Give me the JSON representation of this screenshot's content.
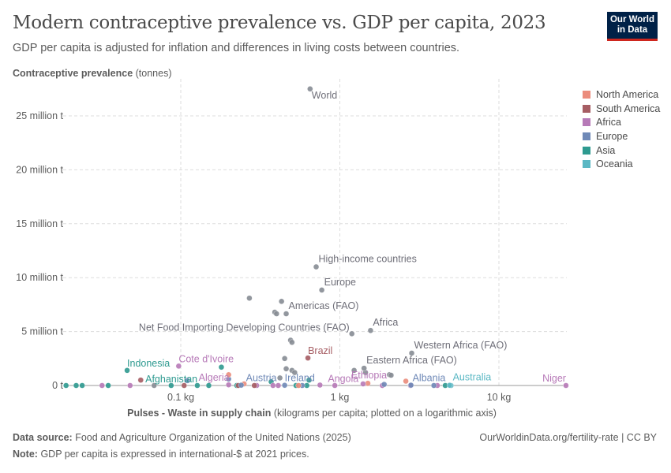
{
  "header": {
    "title": "Modern contraceptive prevalence vs. GDP per capita, 2023",
    "subtitle": "GDP per capita is adjusted for inflation and differences in living costs between countries.",
    "logo": "Our World in Data"
  },
  "footer": {
    "source_label": "Data source:",
    "source": "Food and Agriculture Organization of the United Nations (2025)",
    "note_label": "Note:",
    "note": "GDP per capita is expressed in international-$ at 2021 prices.",
    "url": "OurWorldinData.org/fertility-rate | CC BY"
  },
  "chart_data": {
    "type": "scatter",
    "title": "Modern contraceptive prevalence vs. GDP per capita, 2023",
    "ylabel_bold": "Contraceptive prevalence",
    "ylabel_unit": "(tonnes)",
    "xlabel_bold": "Pulses - Waste in supply chain",
    "xlabel_rest": "(kilograms per capita; plotted on a logarithmic axis)",
    "xscale": "log",
    "xlim": [
      0.017,
      30
    ],
    "ylim": [
      0,
      28000000
    ],
    "xticks": [
      {
        "v": 0.1,
        "label": "0.1 kg"
      },
      {
        "v": 1,
        "label": "1 kg"
      },
      {
        "v": 10,
        "label": "10 kg"
      }
    ],
    "yticks": [
      {
        "v": 0,
        "label": "0 t"
      },
      {
        "v": 5000000,
        "label": "5 million t"
      },
      {
        "v": 10000000,
        "label": "10 million t"
      },
      {
        "v": 15000000,
        "label": "15 million t"
      },
      {
        "v": 20000000,
        "label": "20 million t"
      },
      {
        "v": 25000000,
        "label": "25 million t"
      }
    ],
    "grid": true,
    "legend_placement": "right",
    "legend": [
      {
        "name": "North America",
        "color": "#eb8c7c"
      },
      {
        "name": "South America",
        "color": "#a65d63"
      },
      {
        "name": "Africa",
        "color": "#b77ab8"
      },
      {
        "name": "Europe",
        "color": "#6f89b7"
      },
      {
        "name": "Asia",
        "color": "#2e9a90"
      },
      {
        "name": "Oceania",
        "color": "#5bb8c4"
      }
    ],
    "aggregate_color": "#878c94",
    "labeled_points": [
      {
        "name": "World",
        "x": 0.65,
        "y": 27500000,
        "region": "agg"
      },
      {
        "name": "High-income countries",
        "x": 0.71,
        "y": 11000000,
        "region": "agg"
      },
      {
        "name": "Europe",
        "x": 0.77,
        "y": 8850000,
        "region": "agg"
      },
      {
        "name": "Americas (FAO)",
        "x": 0.46,
        "y": 6650000,
        "region": "agg"
      },
      {
        "name": "Net Food Importing Developing Countries (FAO)",
        "x": 1.19,
        "y": 4800000,
        "region": "agg"
      },
      {
        "name": "Africa",
        "x": 1.56,
        "y": 5100000,
        "region": "agg"
      },
      {
        "name": "Western Africa (FAO)",
        "x": 2.83,
        "y": 3000000,
        "region": "agg"
      },
      {
        "name": "Eastern Africa (FAO)",
        "x": 1.42,
        "y": 1600000,
        "region": "agg"
      },
      {
        "name": "Brazil",
        "x": 0.63,
        "y": 2550000,
        "region": "South America"
      },
      {
        "name": "Indonesia",
        "x": 0.046,
        "y": 1400000,
        "region": "Asia"
      },
      {
        "name": "Cote d'Ivoire",
        "x": 0.097,
        "y": 1800000,
        "region": "Africa"
      },
      {
        "name": "Afghanistan",
        "x": 0.024,
        "y": 0,
        "region": "Asia"
      },
      {
        "name": "Algeria",
        "x": 0.2,
        "y": 60000,
        "region": "Africa"
      },
      {
        "name": "Austria",
        "x": 0.24,
        "y": 30000,
        "region": "Europe"
      },
      {
        "name": "Ireland",
        "x": 0.45,
        "y": 20000,
        "region": "Europe"
      },
      {
        "name": "Angola",
        "x": 0.75,
        "y": 40000,
        "region": "Africa"
      },
      {
        "name": "Ethiopia",
        "x": 1.4,
        "y": 150000,
        "region": "Africa"
      },
      {
        "name": "Albania",
        "x": 2.8,
        "y": 30000,
        "region": "Europe"
      },
      {
        "name": "Australia",
        "x": 4.9,
        "y": 20000,
        "region": "Oceania"
      },
      {
        "name": "Niger",
        "x": 26.4,
        "y": 0,
        "region": "Africa"
      }
    ],
    "points": [
      {
        "x": 0.27,
        "y": 8100000,
        "region": "agg"
      },
      {
        "x": 0.43,
        "y": 7800000,
        "region": "agg"
      },
      {
        "x": 0.39,
        "y": 6800000,
        "region": "agg"
      },
      {
        "x": 0.4,
        "y": 6650000,
        "region": "agg"
      },
      {
        "x": 0.49,
        "y": 4200000,
        "region": "agg"
      },
      {
        "x": 0.5,
        "y": 4000000,
        "region": "agg"
      },
      {
        "x": 0.45,
        "y": 2500000,
        "region": "agg"
      },
      {
        "x": 0.46,
        "y": 1550000,
        "region": "agg"
      },
      {
        "x": 0.5,
        "y": 1400000,
        "region": "agg"
      },
      {
        "x": 1.23,
        "y": 1400000,
        "region": "agg"
      },
      {
        "x": 1.45,
        "y": 1200000,
        "region": "agg"
      },
      {
        "x": 2.05,
        "y": 1000000,
        "region": "agg"
      },
      {
        "x": 2.1,
        "y": 950000,
        "region": "agg"
      },
      {
        "x": 0.068,
        "y": 0,
        "region": "agg"
      },
      {
        "x": 0.52,
        "y": 1200000,
        "region": "agg"
      },
      {
        "x": 0.42,
        "y": 700000,
        "region": "agg"
      },
      {
        "x": 0.019,
        "y": 0,
        "region": "Asia"
      },
      {
        "x": 0.022,
        "y": 0,
        "region": "Asia"
      },
      {
        "x": 0.035,
        "y": 0,
        "region": "Asia"
      },
      {
        "x": 0.087,
        "y": 0,
        "region": "Asia"
      },
      {
        "x": 0.127,
        "y": 0,
        "region": "Asia"
      },
      {
        "x": 0.15,
        "y": 0,
        "region": "Asia"
      },
      {
        "x": 0.18,
        "y": 1700000,
        "region": "Asia"
      },
      {
        "x": 0.225,
        "y": 0,
        "region": "Asia"
      },
      {
        "x": 0.37,
        "y": 350000,
        "region": "Asia"
      },
      {
        "x": 0.53,
        "y": 0,
        "region": "Asia"
      },
      {
        "x": 0.64,
        "y": 500000,
        "region": "Asia"
      },
      {
        "x": 0.62,
        "y": 0,
        "region": "Asia"
      },
      {
        "x": 4.6,
        "y": 0,
        "region": "Asia"
      },
      {
        "x": 0.032,
        "y": 0,
        "region": "Africa"
      },
      {
        "x": 0.048,
        "y": 0,
        "region": "Africa"
      },
      {
        "x": 0.3,
        "y": 0,
        "region": "Africa"
      },
      {
        "x": 0.38,
        "y": 0,
        "region": "Africa"
      },
      {
        "x": 0.41,
        "y": 0,
        "region": "Africa"
      },
      {
        "x": 0.93,
        "y": 0,
        "region": "Africa"
      },
      {
        "x": 1.85,
        "y": 0,
        "region": "Africa"
      },
      {
        "x": 2.78,
        "y": 0,
        "region": "Africa"
      },
      {
        "x": 4.1,
        "y": 0,
        "region": "Africa"
      },
      {
        "x": 0.056,
        "y": 500000,
        "region": "South America"
      },
      {
        "x": 0.105,
        "y": 0,
        "region": "South America"
      },
      {
        "x": 0.23,
        "y": 0,
        "region": "South America"
      },
      {
        "x": 0.29,
        "y": 0,
        "region": "South America"
      },
      {
        "x": 0.11,
        "y": 450000,
        "region": "Europe"
      },
      {
        "x": 0.2,
        "y": 600000,
        "region": "Europe"
      },
      {
        "x": 0.58,
        "y": 0,
        "region": "Europe"
      },
      {
        "x": 1.9,
        "y": 100000,
        "region": "Europe"
      },
      {
        "x": 3.9,
        "y": 0,
        "region": "Europe"
      },
      {
        "x": 0.2,
        "y": 1000000,
        "region": "North America"
      },
      {
        "x": 0.25,
        "y": 150000,
        "region": "North America"
      },
      {
        "x": 0.55,
        "y": 0,
        "region": "North America"
      },
      {
        "x": 1.5,
        "y": 200000,
        "region": "North America"
      },
      {
        "x": 2.6,
        "y": 400000,
        "region": "North America"
      },
      {
        "x": 5.0,
        "y": 0,
        "region": "Oceania"
      }
    ]
  }
}
